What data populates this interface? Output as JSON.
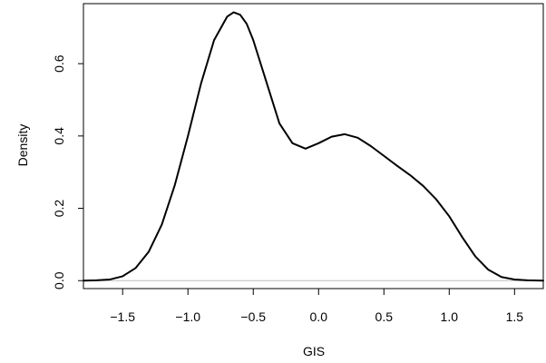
{
  "chart_data": {
    "type": "line",
    "title": "",
    "xlabel": "GIS",
    "ylabel": "Density",
    "xlim": [
      -1.8,
      1.72
    ],
    "ylim": [
      -0.022,
      0.766
    ],
    "x_ticks": [
      "-1.5",
      "-1.0",
      "-0.5",
      "0.0",
      "0.5",
      "1.0",
      "1.5"
    ],
    "y_ticks": [
      "0.0",
      "0.2",
      "0.4",
      "0.6"
    ],
    "grid": false,
    "baseline": 0,
    "colors": {
      "line": "#000000",
      "baseline": "#bebebe",
      "axes": "#000000",
      "background": "#ffffff"
    },
    "series": [
      {
        "x": [
          -1.8,
          -1.7,
          -1.6,
          -1.5,
          -1.4,
          -1.3,
          -1.2,
          -1.1,
          -1.0,
          -0.9,
          -0.8,
          -0.7,
          -0.65,
          -0.6,
          -0.55,
          -0.5,
          -0.4,
          -0.3,
          -0.2,
          -0.1,
          0.0,
          0.1,
          0.2,
          0.3,
          0.4,
          0.5,
          0.6,
          0.7,
          0.8,
          0.9,
          1.0,
          1.1,
          1.2,
          1.3,
          1.4,
          1.5,
          1.6,
          1.72
        ],
        "y": [
          0.0,
          0.001,
          0.003,
          0.012,
          0.035,
          0.08,
          0.155,
          0.265,
          0.4,
          0.545,
          0.665,
          0.73,
          0.742,
          0.735,
          0.71,
          0.665,
          0.55,
          0.435,
          0.38,
          0.365,
          0.38,
          0.398,
          0.405,
          0.395,
          0.372,
          0.345,
          0.318,
          0.292,
          0.262,
          0.225,
          0.178,
          0.12,
          0.067,
          0.03,
          0.01,
          0.003,
          0.001,
          0.0
        ]
      }
    ]
  }
}
